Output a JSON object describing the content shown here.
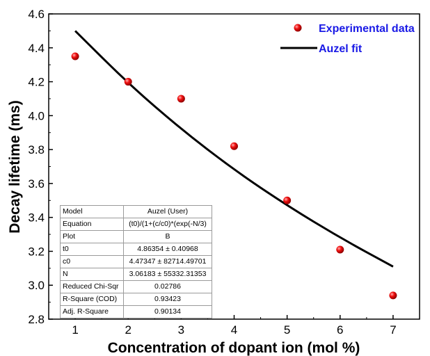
{
  "chart_data": {
    "type": "scatter",
    "xlabel": "Concentration of dopant ion (mol %)",
    "ylabel": "Decay lifetime (ms)",
    "xlim": [
      0.5,
      7.5
    ],
    "ylim": [
      2.8,
      4.6
    ],
    "xticks": [
      "1",
      "2",
      "3",
      "4",
      "5",
      "6",
      "7"
    ],
    "yticks": [
      "2.8",
      "3.0",
      "3.2",
      "3.4",
      "3.6",
      "3.8",
      "4.0",
      "4.2",
      "4.4",
      "4.6"
    ],
    "grid": false,
    "legend_position": "top-right",
    "series": [
      {
        "name": "Experimental data",
        "kind": "scatter",
        "color": "#e00000",
        "x": [
          1,
          2,
          3,
          4,
          5,
          6,
          7
        ],
        "y": [
          4.35,
          4.2,
          4.1,
          3.82,
          3.5,
          3.21,
          2.94
        ]
      },
      {
        "name": "Auzel fit",
        "kind": "line",
        "color": "#000000",
        "x": [
          1,
          2,
          3,
          4,
          5,
          6,
          7
        ],
        "y": [
          4.5,
          4.19,
          3.92,
          3.68,
          3.47,
          3.28,
          3.11
        ]
      }
    ],
    "legend_text_color": "#1a1ae6",
    "fit_table": [
      [
        "Model",
        "Auzel (User)"
      ],
      [
        "Equation",
        "(t0)/(1+(c/c0)*(exp(-N/3)"
      ],
      [
        "Plot",
        "B"
      ],
      [
        "t0",
        "4.86354 ± 0.40968"
      ],
      [
        "c0",
        "4.47347 ± 82714.49701"
      ],
      [
        "N",
        "3.06183 ± 55332.31353"
      ],
      [
        "Reduced Chi-Sqr",
        "0.02786"
      ],
      [
        "R-Square (COD)",
        "0.93423"
      ],
      [
        "Adj. R-Square",
        "0.90134"
      ]
    ]
  }
}
